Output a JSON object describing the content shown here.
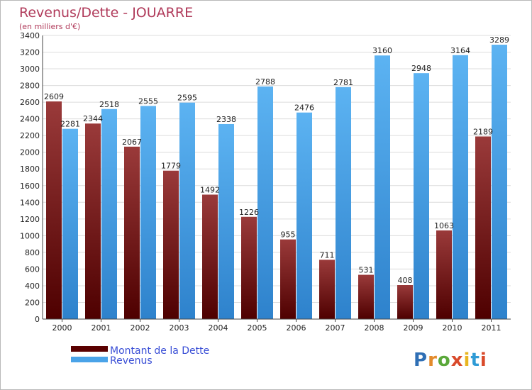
{
  "chart_data": {
    "type": "bar",
    "title": "Revenus/Dette - JOUARRE",
    "subtitle": "(en milliers d'€)",
    "categories": [
      "2000",
      "2001",
      "2002",
      "2003",
      "2004",
      "2005",
      "2006",
      "2007",
      "2008",
      "2009",
      "2010",
      "2011"
    ],
    "series": [
      {
        "name": "Montant de la Dette",
        "values": [
          2609,
          2344,
          2067,
          1779,
          1492,
          1226,
          955,
          711,
          531,
          408,
          1063,
          2189
        ],
        "labels": [
          "2609",
          "2344",
          "2067",
          "1779",
          "1492",
          "1226",
          "955",
          "711",
          "531",
          "408",
          "1063",
          "2189"
        ],
        "color": "#7a1a1a"
      },
      {
        "name": "Revenus",
        "values": [
          2281,
          2518,
          2555,
          2595,
          2338,
          2788,
          2476,
          2781,
          3160,
          2948,
          3164,
          3289
        ],
        "labels": [
          "2281",
          "2518",
          "2555",
          "2595",
          "2338",
          "2788",
          "2476",
          "2781",
          "3160",
          "2948",
          "3164",
          "3289"
        ],
        "color": "#4aa3e8"
      }
    ],
    "yticks": [
      "0",
      "200",
      "400",
      "600",
      "800",
      "1000",
      "1200",
      "1400",
      "1600",
      "1800",
      "2000",
      "2200",
      "2400",
      "2600",
      "2800",
      "3000",
      "3200",
      "3400"
    ],
    "ylim": [
      0,
      3400
    ],
    "grid": true,
    "legend_position": "bottom-left"
  },
  "logo": {
    "text": "Proxiti",
    "letters": [
      "P",
      "r",
      "o",
      "x",
      "i",
      "t",
      "i"
    ],
    "colors": [
      "#2f6fb5",
      "#e38a2b",
      "#5aa83a",
      "#d94a2b",
      "#e8b520",
      "#2f9bd6",
      "#d94a2b"
    ]
  }
}
